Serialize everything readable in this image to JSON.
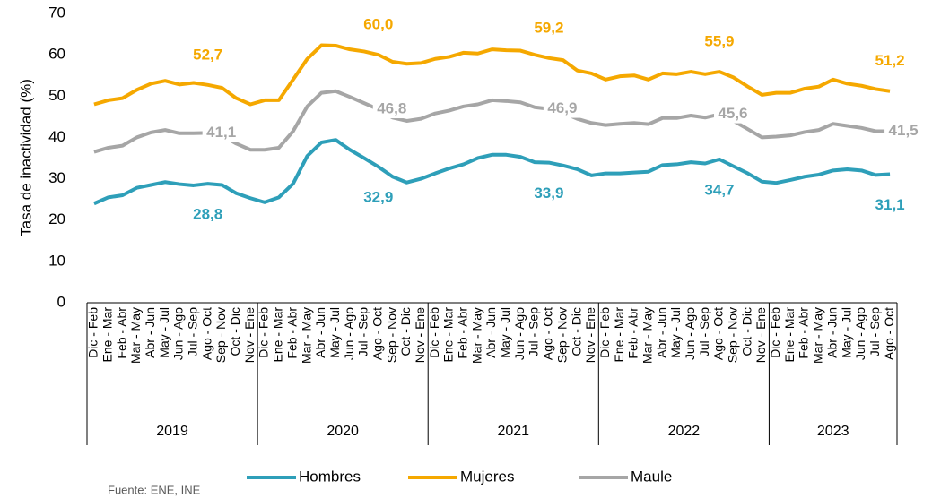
{
  "chart_data": {
    "type": "line",
    "y_label": "Tasa de inactividad (%)",
    "source": "Fuente: ENE, INE",
    "ylim": [
      0,
      70
    ],
    "yticks": [
      0,
      10,
      20,
      30,
      40,
      50,
      60,
      70
    ],
    "grid": false,
    "legend": "bottom",
    "category_groups": [
      {
        "label": "2019",
        "categories": [
          "Dic - Feb",
          "Ene - Mar",
          "Feb - Abr",
          "Mar - May",
          "Abr - Jun",
          "May - Jul",
          "Jun - Ago",
          "Jul - Sep",
          "Ago - Oct",
          "Sep - Nov",
          "Oct - Dic",
          "Nov - Ene"
        ]
      },
      {
        "label": "2020",
        "categories": [
          "Dic - Feb",
          "Ene - Mar",
          "Feb - Abr",
          "Mar - May",
          "Abr - Jun",
          "May - Jul",
          "Jun - Ago",
          "Jul - Sep",
          "Ago - Oct",
          "Sep - Nov",
          "Oct - Dic",
          "Nov - Ene"
        ]
      },
      {
        "label": "2021",
        "categories": [
          "Dic - Feb",
          "Ene - Mar",
          "Feb - Abr",
          "Mar - May",
          "Abr - Jun",
          "May - Jul",
          "Jun - Ago",
          "Jul - Sep",
          "Ago - Oct",
          "Sep - Nov",
          "Oct - Dic",
          "Nov - Ene"
        ]
      },
      {
        "label": "2022",
        "categories": [
          "Dic - Feb",
          "Ene - Mar",
          "Feb - Abr",
          "Mar - May",
          "Abr - Jun",
          "May - Jul",
          "Jun - Ago",
          "Jul - Sep",
          "Ago - Oct",
          "Sep - Nov",
          "Oct - Dic",
          "Nov - Ene"
        ]
      },
      {
        "label": "2023",
        "categories": [
          "Dic - Feb",
          "Ene - Mar",
          "Feb - Abr",
          "Mar - May",
          "Abr - Jun",
          "May - Jul",
          "Jun - Ago",
          "Jul - Sep",
          "Ago - Oct"
        ]
      }
    ],
    "series": [
      {
        "name": "Hombres",
        "color": "#2e9fb9",
        "values": [
          24.0,
          25.5,
          26.0,
          27.8,
          28.5,
          29.2,
          28.7,
          28.4,
          28.8,
          28.5,
          26.5,
          25.3,
          24.3,
          25.5,
          28.8,
          35.5,
          38.8,
          39.4,
          37.0,
          35.0,
          32.9,
          30.5,
          29.1,
          30.0,
          31.3,
          32.5,
          33.5,
          35.0,
          35.8,
          35.8,
          35.3,
          34.0,
          33.9,
          33.2,
          32.3,
          30.8,
          31.3,
          31.3,
          31.5,
          31.7,
          33.3,
          33.5,
          34.0,
          33.7,
          34.7,
          33.0,
          31.3,
          29.3,
          29.0,
          29.7,
          30.5,
          31.0,
          32.0,
          32.3,
          32.0,
          30.9,
          31.1
        ],
        "value_labels": [
          null,
          null,
          null,
          null,
          null,
          null,
          null,
          null,
          "28,8",
          null,
          null,
          null,
          null,
          null,
          null,
          null,
          null,
          null,
          null,
          null,
          "32,9",
          null,
          null,
          null,
          null,
          null,
          null,
          null,
          null,
          null,
          null,
          null,
          "33,9",
          null,
          null,
          null,
          null,
          null,
          null,
          null,
          null,
          null,
          null,
          null,
          "34,7",
          null,
          null,
          null,
          null,
          null,
          null,
          null,
          null,
          null,
          null,
          null,
          "31,1"
        ]
      },
      {
        "name": "Mujeres",
        "color": "#f5a800",
        "values": [
          48.0,
          49.0,
          49.5,
          51.5,
          53.0,
          53.7,
          52.8,
          53.2,
          52.7,
          52.0,
          49.5,
          48.0,
          49.0,
          49.0,
          54.0,
          59.0,
          62.3,
          62.2,
          61.3,
          60.8,
          60.0,
          58.3,
          57.8,
          58.0,
          59.0,
          59.5,
          60.5,
          60.3,
          61.3,
          61.1,
          61.0,
          60.0,
          59.2,
          58.7,
          56.2,
          55.5,
          54.0,
          54.8,
          55.0,
          54.0,
          55.5,
          55.3,
          55.9,
          55.3,
          55.9,
          54.5,
          52.3,
          50.3,
          50.8,
          50.8,
          51.8,
          52.3,
          54.0,
          53.0,
          52.5,
          51.7,
          51.2
        ],
        "value_labels": [
          null,
          null,
          null,
          null,
          null,
          null,
          null,
          null,
          "52,7",
          null,
          null,
          null,
          null,
          null,
          null,
          null,
          null,
          null,
          null,
          null,
          "60,0",
          null,
          null,
          null,
          null,
          null,
          null,
          null,
          null,
          null,
          null,
          null,
          "59,2",
          null,
          null,
          null,
          null,
          null,
          null,
          null,
          null,
          null,
          null,
          null,
          "55,9",
          null,
          null,
          null,
          null,
          null,
          null,
          null,
          null,
          null,
          null,
          null,
          "51,2"
        ]
      },
      {
        "name": "Maule",
        "color": "#a6a6a6",
        "values": [
          36.5,
          37.5,
          38.0,
          40.0,
          41.2,
          41.8,
          41.0,
          41.0,
          41.1,
          40.5,
          38.5,
          37.0,
          37.0,
          37.5,
          41.5,
          47.5,
          50.8,
          51.2,
          49.8,
          48.3,
          46.8,
          44.8,
          44.0,
          44.5,
          45.8,
          46.5,
          47.5,
          48.0,
          49.0,
          48.8,
          48.5,
          47.3,
          46.9,
          46.0,
          44.5,
          43.5,
          43.0,
          43.3,
          43.5,
          43.2,
          44.7,
          44.7,
          45.3,
          44.8,
          45.6,
          44.0,
          42.0,
          40.0,
          40.2,
          40.5,
          41.3,
          41.8,
          43.3,
          42.8,
          42.3,
          41.5,
          41.5
        ],
        "value_labels": [
          null,
          null,
          null,
          null,
          null,
          null,
          null,
          null,
          "41,1",
          null,
          null,
          null,
          null,
          null,
          null,
          null,
          null,
          null,
          null,
          null,
          "46,8",
          null,
          null,
          null,
          null,
          null,
          null,
          null,
          null,
          null,
          null,
          null,
          "46,9",
          null,
          null,
          null,
          null,
          null,
          null,
          null,
          null,
          null,
          null,
          null,
          "45,6",
          null,
          null,
          null,
          null,
          null,
          null,
          null,
          null,
          null,
          null,
          null,
          "41,5"
        ]
      }
    ]
  }
}
